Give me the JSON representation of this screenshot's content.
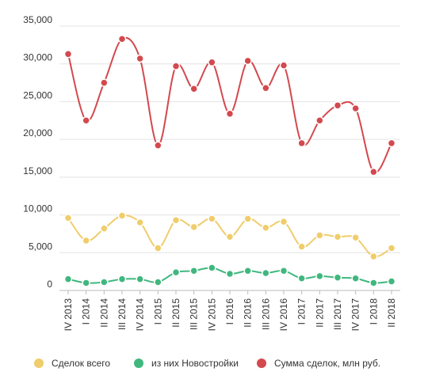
{
  "chart_data": {
    "type": "line",
    "title": "",
    "xlabel": "",
    "ylabel": "",
    "ylim": [
      0,
      35000
    ],
    "yticks": [
      0,
      5000,
      10000,
      15000,
      20000,
      25000,
      30000,
      35000
    ],
    "ytick_labels": [
      "0",
      "5,000",
      "10,000",
      "15,000",
      "20,000",
      "25,000",
      "30,000",
      "35,000"
    ],
    "grid": true,
    "legend_position": "bottom",
    "categories": [
      "IV 2013",
      "I 2014",
      "II 2014",
      "III 2014",
      "IV 2014",
      "I 2015",
      "II 2015",
      "III 2015",
      "IV 2015",
      "I 2016",
      "II 2016",
      "III 2016",
      "IV 2016",
      "I 2017",
      "II 2017",
      "III 2017",
      "IV 2017",
      "I 2018",
      "II 2018"
    ],
    "series": [
      {
        "name": "Сделок всего",
        "color": "#f0cd6b",
        "values": [
          9600,
          6600,
          8200,
          9900,
          9000,
          5600,
          9300,
          8400,
          9500,
          7100,
          9500,
          8300,
          9100,
          5800,
          7300,
          7100,
          7000,
          4500,
          5600
        ]
      },
      {
        "name": "из них Новостройки",
        "color": "#40b77e",
        "values": [
          1500,
          1000,
          1100,
          1500,
          1500,
          1100,
          2400,
          2600,
          3000,
          2200,
          2600,
          2300,
          2600,
          1600,
          1900,
          1700,
          1600,
          1000,
          1200
        ]
      },
      {
        "name": "Сумма сделок, млн руб.",
        "color": "#d3494e",
        "values": [
          31300,
          22500,
          27500,
          33300,
          30700,
          19200,
          29700,
          26700,
          30200,
          23400,
          30400,
          26800,
          29800,
          19500,
          22500,
          24500,
          24100,
          15700,
          19500
        ]
      }
    ]
  }
}
